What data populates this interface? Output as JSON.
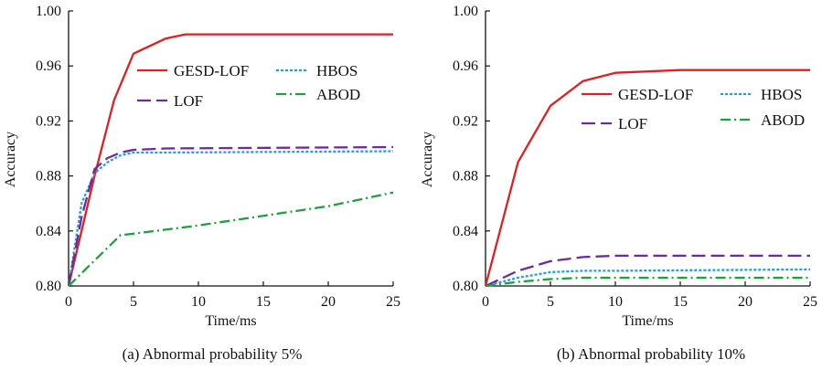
{
  "chart_data": [
    {
      "type": "line",
      "title": "",
      "caption": "(a) Abnormal probability 5%",
      "xlabel": "Time/ms",
      "ylabel": "Accuracy",
      "xlim": [
        0,
        25
      ],
      "ylim": [
        0.8,
        1.0
      ],
      "xticks": [
        "0",
        "5",
        "10",
        "15",
        "20",
        "25"
      ],
      "yticks": [
        "0.80",
        "0.84",
        "0.88",
        "0.92",
        "0.96",
        "1.00"
      ],
      "legend_position": "top-right",
      "series": [
        {
          "name": "GESD-LOF",
          "color": "#e02020",
          "style": "solid",
          "x": [
            0,
            1,
            2,
            3.5,
            5,
            7.5,
            9,
            25
          ],
          "y": [
            0.8,
            0.84,
            0.88,
            0.935,
            0.969,
            0.98,
            0.983,
            0.983
          ]
        },
        {
          "name": "HBOS",
          "color": "#1ea0e0",
          "style": "dotted",
          "x": [
            0,
            1,
            2,
            3,
            4,
            5,
            7.5,
            25
          ],
          "y": [
            0.8,
            0.86,
            0.882,
            0.89,
            0.895,
            0.897,
            0.897,
            0.898
          ]
        },
        {
          "name": "LOF",
          "color": "#6a2c9e",
          "style": "dashed",
          "x": [
            0,
            1,
            2,
            3,
            4,
            5,
            7.5,
            25
          ],
          "y": [
            0.8,
            0.85,
            0.885,
            0.893,
            0.897,
            0.899,
            0.9,
            0.901
          ]
        },
        {
          "name": "ABOD",
          "color": "#1aa33a",
          "style": "dashdot",
          "x": [
            0,
            4,
            5,
            10,
            15,
            20,
            25
          ],
          "y": [
            0.8,
            0.837,
            0.838,
            0.844,
            0.851,
            0.858,
            0.868
          ]
        }
      ]
    },
    {
      "type": "line",
      "title": "",
      "caption": "(b) Abnormal probability 10%",
      "xlabel": "Time/ms",
      "ylabel": "Accuracy",
      "xlim": [
        0,
        25
      ],
      "ylim": [
        0.8,
        1.0
      ],
      "xticks": [
        "0",
        "5",
        "10",
        "15",
        "20",
        "25"
      ],
      "yticks": [
        "0.80",
        "0.84",
        "0.88",
        "0.92",
        "0.96",
        "1.00"
      ],
      "legend_position": "center-right",
      "series": [
        {
          "name": "GESD-LOF",
          "color": "#e02020",
          "style": "solid",
          "x": [
            0,
            2.5,
            5,
            7.5,
            10,
            15,
            25
          ],
          "y": [
            0.8,
            0.89,
            0.931,
            0.949,
            0.955,
            0.957,
            0.957
          ]
        },
        {
          "name": "HBOS",
          "color": "#1ea0e0",
          "style": "dotted",
          "x": [
            0,
            2.5,
            5,
            7.5,
            10,
            25
          ],
          "y": [
            0.8,
            0.806,
            0.81,
            0.811,
            0.811,
            0.812
          ]
        },
        {
          "name": "LOF",
          "color": "#6a2c9e",
          "style": "dashed",
          "x": [
            0,
            2.5,
            5,
            7.5,
            10,
            25
          ],
          "y": [
            0.8,
            0.811,
            0.818,
            0.821,
            0.822,
            0.822
          ]
        },
        {
          "name": "ABOD",
          "color": "#1aa33a",
          "style": "dashdot",
          "x": [
            0,
            2.5,
            5,
            7.5,
            10,
            25
          ],
          "y": [
            0.8,
            0.803,
            0.805,
            0.806,
            0.806,
            0.806
          ]
        }
      ]
    }
  ]
}
